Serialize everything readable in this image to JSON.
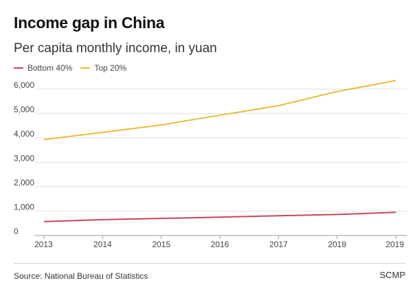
{
  "title": "Income gap in China",
  "subtitle": "Per capita monthly income, in yuan",
  "colors": {
    "bottom40": "#c8465c",
    "top20": "#e9bb3b",
    "grid": "#e2e2e2",
    "axis": "#999999"
  },
  "chart_data": {
    "type": "line",
    "x": [
      2013,
      2014,
      2015,
      2016,
      2017,
      2018,
      2019
    ],
    "series": [
      {
        "name": "Bottom 40%",
        "values": [
          570,
          650,
          700,
          750,
          810,
          860,
          950
        ]
      },
      {
        "name": "Top 20%",
        "values": [
          3930,
          4230,
          4530,
          4930,
          5320,
          5900,
          6350
        ]
      }
    ],
    "ylim": [
      0,
      6500
    ],
    "yticks": [
      0,
      1000,
      2000,
      3000,
      4000,
      5000,
      6000
    ],
    "ytick_labels": [
      "0",
      "1,000",
      "2,000",
      "3,000",
      "4,000",
      "5,000",
      "6,000"
    ],
    "xtick_labels": [
      "2013",
      "2014",
      "2015",
      "2016",
      "2017",
      "2018",
      "2019"
    ],
    "title": "Income gap in China",
    "xlabel": "",
    "ylabel": "",
    "legend": "top-left",
    "grid": true
  },
  "footer": {
    "source": "Source: National Bureau of Statistics",
    "brand": "SCMP"
  }
}
